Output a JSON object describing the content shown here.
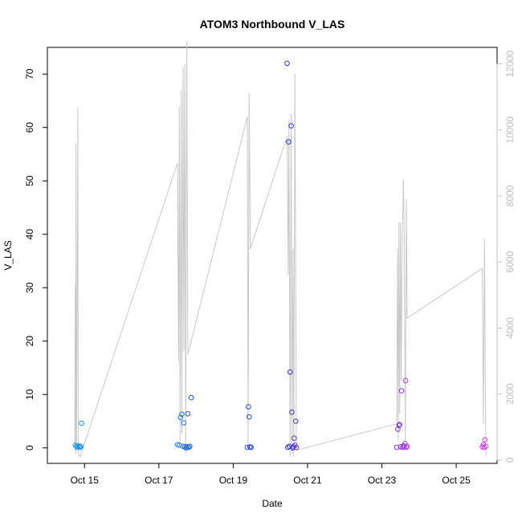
{
  "chart_data": {
    "type": "scatter",
    "title": "ATOM3 Northbound V_LAS",
    "xlabel": "Date",
    "ylabel": "V_LAS",
    "x_ticks": [
      "Oct 15",
      "Oct 17",
      "Oct 19",
      "Oct 21",
      "Oct 23",
      "Oct 25"
    ],
    "x_tick_values": [
      15,
      17,
      19,
      21,
      23,
      25
    ],
    "xlim": [
      14.0,
      26.1
    ],
    "ylim": [
      -2.9,
      75.0
    ],
    "y_ticks": [
      0,
      10,
      20,
      30,
      40,
      50,
      60,
      70
    ],
    "y2lim": [
      -100,
      12500
    ],
    "y2_ticks": [
      0,
      2000,
      4000,
      6000,
      8000,
      10000,
      12000
    ],
    "grid": false,
    "legend": "none",
    "series": [
      {
        "kind": "points",
        "color_start": "#1ea8ee",
        "color_mid": "#1f2fd6",
        "color_end": "#e43ae4",
        "points": [
          {
            "x": 14.75,
            "y": 0.5
          },
          {
            "x": 14.78,
            "y": 0.3
          },
          {
            "x": 14.8,
            "y": 0.1
          },
          {
            "x": 14.83,
            "y": 0.4
          },
          {
            "x": 14.86,
            "y": 0.2
          },
          {
            "x": 14.88,
            "y": 0.1
          },
          {
            "x": 14.9,
            "y": 0.3
          },
          {
            "x": 14.92,
            "y": 4.6
          },
          {
            "x": 17.5,
            "y": 0.6
          },
          {
            "x": 17.55,
            "y": 0.5
          },
          {
            "x": 17.58,
            "y": 5.7
          },
          {
            "x": 17.62,
            "y": 6.3
          },
          {
            "x": 17.65,
            "y": 0.3
          },
          {
            "x": 17.67,
            "y": 4.7
          },
          {
            "x": 17.7,
            "y": 0.2
          },
          {
            "x": 17.73,
            "y": 0.0
          },
          {
            "x": 17.76,
            "y": 0.2
          },
          {
            "x": 17.78,
            "y": 6.4
          },
          {
            "x": 17.8,
            "y": 0.1
          },
          {
            "x": 17.83,
            "y": 0.3
          },
          {
            "x": 17.87,
            "y": 9.4
          },
          {
            "x": 19.38,
            "y": 0.1
          },
          {
            "x": 19.41,
            "y": 7.7
          },
          {
            "x": 19.43,
            "y": 5.8
          },
          {
            "x": 19.45,
            "y": 0.2
          },
          {
            "x": 19.48,
            "y": 0.1
          },
          {
            "x": 20.45,
            "y": 72.0
          },
          {
            "x": 20.47,
            "y": 0.1
          },
          {
            "x": 20.49,
            "y": 57.3
          },
          {
            "x": 20.51,
            "y": 0.3
          },
          {
            "x": 20.53,
            "y": 14.2
          },
          {
            "x": 20.56,
            "y": 60.3
          },
          {
            "x": 20.58,
            "y": 6.7
          },
          {
            "x": 20.6,
            "y": 0.0
          },
          {
            "x": 20.62,
            "y": 0.2
          },
          {
            "x": 20.64,
            "y": 1.8
          },
          {
            "x": 20.66,
            "y": 0.5
          },
          {
            "x": 20.68,
            "y": 5.0
          },
          {
            "x": 20.7,
            "y": 0.1
          },
          {
            "x": 23.4,
            "y": 0.1
          },
          {
            "x": 23.43,
            "y": 3.5
          },
          {
            "x": 23.46,
            "y": 4.2
          },
          {
            "x": 23.48,
            "y": 4.4
          },
          {
            "x": 23.5,
            "y": 0.2
          },
          {
            "x": 23.53,
            "y": 10.7
          },
          {
            "x": 23.56,
            "y": 0.1
          },
          {
            "x": 23.58,
            "y": 0.4
          },
          {
            "x": 23.6,
            "y": 0.2
          },
          {
            "x": 23.62,
            "y": 0.8
          },
          {
            "x": 23.64,
            "y": 12.6
          },
          {
            "x": 23.66,
            "y": 0.1
          },
          {
            "x": 23.68,
            "y": 0.3
          },
          {
            "x": 25.7,
            "y": 0.2
          },
          {
            "x": 25.73,
            "y": 0.6
          },
          {
            "x": 25.75,
            "y": 0.1
          },
          {
            "x": 25.77,
            "y": 1.5
          },
          {
            "x": 25.8,
            "y": 0.3
          }
        ]
      },
      {
        "kind": "line",
        "axis": "right",
        "color": "#c8c8c8",
        "points": [
          [
            14.74,
            400
          ],
          [
            14.75,
            5300
          ],
          [
            14.76,
            200
          ],
          [
            14.77,
            9600
          ],
          [
            14.78,
            300
          ],
          [
            14.8,
            4000
          ],
          [
            14.82,
            10700
          ],
          [
            14.83,
            200
          ],
          [
            14.88,
            100
          ],
          [
            17.5,
            9000
          ],
          [
            17.53,
            3000
          ],
          [
            17.55,
            10700
          ],
          [
            17.57,
            500
          ],
          [
            17.6,
            11200
          ],
          [
            17.62,
            800
          ],
          [
            17.65,
            11900
          ],
          [
            17.67,
            3300
          ],
          [
            17.7,
            12000
          ],
          [
            17.72,
            200
          ],
          [
            17.75,
            12700
          ],
          [
            17.78,
            3200
          ],
          [
            19.38,
            10400
          ],
          [
            19.4,
            500
          ],
          [
            19.43,
            11100
          ],
          [
            19.46,
            6400
          ],
          [
            20.45,
            9800
          ],
          [
            20.48,
            5600
          ],
          [
            20.5,
            10300
          ],
          [
            20.53,
            100
          ],
          [
            20.56,
            10500
          ],
          [
            20.58,
            200
          ],
          [
            20.61,
            6400
          ],
          [
            20.63,
            100
          ],
          [
            20.66,
            11700
          ],
          [
            20.7,
            300
          ],
          [
            23.4,
            1100
          ],
          [
            23.42,
            6400
          ],
          [
            23.44,
            600
          ],
          [
            23.46,
            7200
          ],
          [
            23.48,
            1400
          ],
          [
            23.5,
            7200
          ],
          [
            23.52,
            2400
          ],
          [
            23.55,
            6800
          ],
          [
            23.58,
            8500
          ],
          [
            23.6,
            6900
          ],
          [
            23.63,
            600
          ],
          [
            23.66,
            7900
          ],
          [
            23.68,
            4300
          ],
          [
            25.7,
            5800
          ],
          [
            25.73,
            1100
          ],
          [
            25.76,
            6700
          ],
          [
            25.78,
            2900
          ],
          [
            25.8,
            100
          ]
        ]
      }
    ]
  }
}
